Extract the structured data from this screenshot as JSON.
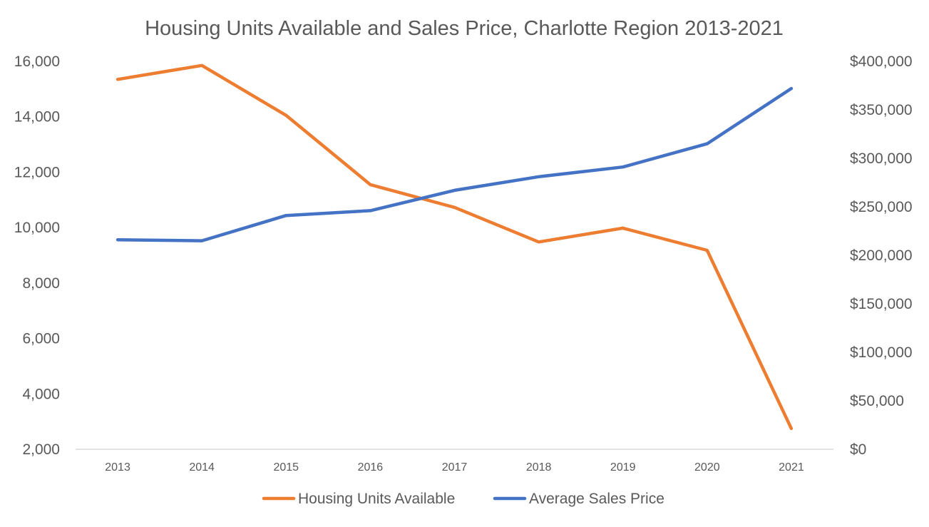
{
  "chart_data": {
    "type": "line",
    "title": "Housing Units Available and Sales Price, Charlotte Region 2013-2021",
    "categories": [
      "2013",
      "2014",
      "2015",
      "2016",
      "2017",
      "2018",
      "2019",
      "2020",
      "2021"
    ],
    "series": [
      {
        "name": "Housing Units Available",
        "axis": "left",
        "color": "#ED7D31",
        "values": [
          15350,
          15850,
          14050,
          11550,
          10730,
          9480,
          9980,
          9180,
          2750
        ]
      },
      {
        "name": "Average Sales Price",
        "axis": "right",
        "color": "#4472C4",
        "values": [
          216000,
          215000,
          241000,
          246000,
          267000,
          281000,
          291000,
          315000,
          372000
        ]
      }
    ],
    "y_left": {
      "ylim": [
        2000,
        16000
      ],
      "ticks": [
        2000,
        4000,
        6000,
        8000,
        10000,
        12000,
        14000,
        16000
      ],
      "tick_labels": [
        "2,000",
        "4,000",
        "6,000",
        "8,000",
        "10,000",
        "12,000",
        "14,000",
        "16,000"
      ]
    },
    "y_right": {
      "ylim": [
        0,
        400000
      ],
      "ticks": [
        0,
        50000,
        100000,
        150000,
        200000,
        250000,
        300000,
        350000,
        400000
      ],
      "tick_labels": [
        "$0",
        "$50,000",
        "$100,000",
        "$150,000",
        "$200,000",
        "$250,000",
        "$300,000",
        "$350,000",
        "$400,000"
      ]
    },
    "grid": false,
    "legend_position": "bottom"
  }
}
